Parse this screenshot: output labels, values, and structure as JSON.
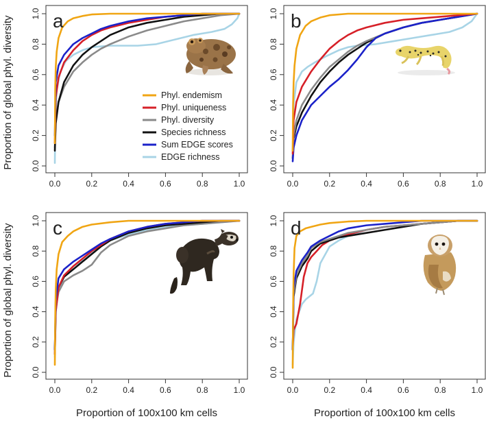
{
  "figure": {
    "ylabel": "Proportion of global phyl. diversity",
    "xlabel": "Proportion of 100x100 km cells"
  },
  "legend": {
    "entries": [
      {
        "label": "Phyl. endemism",
        "color": "#f0a513"
      },
      {
        "label": "Phyl. uniqueness",
        "color": "#d62028"
      },
      {
        "label": "Phyl. diversity",
        "color": "#8a8a8a"
      },
      {
        "label": "Species richness",
        "color": "#111111"
      },
      {
        "label": "Sum EDGE scores",
        "color": "#1b22c9"
      },
      {
        "label": "EDGE richness",
        "color": "#a8d4e6"
      }
    ]
  },
  "chart_data": [
    {
      "type": "line",
      "panel": "a",
      "letter": "a",
      "animal": "toad",
      "xlim": [
        0,
        1
      ],
      "ylim": [
        0,
        1
      ],
      "xticks": [
        "0.0",
        "0.2",
        "0.4",
        "0.6",
        "0.8",
        "1.0"
      ],
      "yticks": [
        "0.0",
        "0.2",
        "0.4",
        "0.6",
        "0.8",
        "1.0"
      ],
      "series": [
        {
          "name": "EDGE richness",
          "color": "#a8d4e6",
          "x": [
            0,
            0.002,
            0.01,
            0.03,
            0.06,
            0.1,
            0.15,
            0.2,
            0.25,
            0.3,
            0.38,
            0.45,
            0.55,
            0.65,
            0.75,
            0.85,
            0.92,
            0.96,
            0.99,
            1.0
          ],
          "y": [
            0.02,
            0.25,
            0.5,
            0.62,
            0.69,
            0.73,
            0.76,
            0.78,
            0.785,
            0.79,
            0.79,
            0.79,
            0.8,
            0.83,
            0.86,
            0.88,
            0.9,
            0.93,
            0.97,
            1.0
          ]
        },
        {
          "name": "Phyl. diversity",
          "color": "#8a8a8a",
          "x": [
            0,
            0.005,
            0.02,
            0.05,
            0.1,
            0.15,
            0.2,
            0.25,
            0.3,
            0.4,
            0.5,
            0.6,
            0.7,
            0.8,
            0.9,
            1.0
          ],
          "y": [
            0.12,
            0.3,
            0.42,
            0.52,
            0.62,
            0.68,
            0.73,
            0.77,
            0.8,
            0.85,
            0.89,
            0.92,
            0.95,
            0.97,
            0.99,
            1.0
          ]
        },
        {
          "name": "Species richness",
          "color": "#111111",
          "x": [
            0,
            0.005,
            0.02,
            0.05,
            0.1,
            0.15,
            0.2,
            0.25,
            0.3,
            0.4,
            0.5,
            0.6,
            0.7,
            0.8,
            0.9,
            1.0
          ],
          "y": [
            0.1,
            0.28,
            0.42,
            0.55,
            0.66,
            0.73,
            0.78,
            0.82,
            0.86,
            0.91,
            0.94,
            0.96,
            0.98,
            0.99,
            1.0,
            1.0
          ]
        },
        {
          "name": "Phyl. uniqueness",
          "color": "#d62028",
          "x": [
            0,
            0.005,
            0.02,
            0.05,
            0.1,
            0.15,
            0.2,
            0.25,
            0.3,
            0.4,
            0.5,
            0.6,
            0.7,
            0.8,
            0.9,
            1.0
          ],
          "y": [
            0.15,
            0.45,
            0.58,
            0.68,
            0.76,
            0.82,
            0.86,
            0.89,
            0.91,
            0.94,
            0.96,
            0.98,
            0.99,
            1.0,
            1.0,
            1.0
          ]
        },
        {
          "name": "Sum EDGE scores",
          "color": "#1b22c9",
          "x": [
            0,
            0.005,
            0.02,
            0.05,
            0.1,
            0.15,
            0.2,
            0.25,
            0.3,
            0.4,
            0.5,
            0.6,
            0.7,
            0.8,
            0.9,
            1.0
          ],
          "y": [
            0.2,
            0.55,
            0.66,
            0.73,
            0.8,
            0.84,
            0.87,
            0.9,
            0.92,
            0.95,
            0.97,
            0.98,
            0.99,
            1.0,
            1.0,
            1.0
          ]
        },
        {
          "name": "Phyl. endemism",
          "color": "#f0a513",
          "x": [
            0,
            0.002,
            0.005,
            0.01,
            0.02,
            0.04,
            0.07,
            0.1,
            0.15,
            0.2,
            0.3,
            0.4,
            0.5,
            0.7,
            1.0
          ],
          "y": [
            0.15,
            0.5,
            0.65,
            0.75,
            0.84,
            0.91,
            0.95,
            0.97,
            0.985,
            0.995,
            1.0,
            1.0,
            1.0,
            1.0,
            1.0
          ]
        }
      ]
    },
    {
      "type": "line",
      "panel": "b",
      "letter": "b",
      "animal": "gecko",
      "xlim": [
        0,
        1
      ],
      "ylim": [
        0,
        1
      ],
      "xticks": [
        "0.0",
        "0.2",
        "0.4",
        "0.6",
        "0.8",
        "1.0"
      ],
      "yticks": [
        "0.0",
        "0.2",
        "0.4",
        "0.6",
        "0.8",
        "1.0"
      ],
      "series": [
        {
          "name": "EDGE richness",
          "color": "#a8d4e6",
          "x": [
            0,
            0.005,
            0.02,
            0.05,
            0.08,
            0.12,
            0.18,
            0.25,
            0.3,
            0.35,
            0.45,
            0.55,
            0.65,
            0.75,
            0.85,
            0.92,
            0.97,
            1.0
          ],
          "y": [
            0.1,
            0.4,
            0.55,
            0.62,
            0.65,
            0.68,
            0.72,
            0.76,
            0.78,
            0.79,
            0.8,
            0.82,
            0.84,
            0.86,
            0.88,
            0.91,
            0.95,
            1.0
          ]
        },
        {
          "name": "Species richness",
          "color": "#111111",
          "x": [
            0,
            0.005,
            0.02,
            0.05,
            0.1,
            0.15,
            0.2,
            0.25,
            0.3,
            0.35,
            0.4,
            0.5,
            0.6,
            0.7,
            0.8,
            0.9,
            1.0
          ],
          "y": [
            0.05,
            0.18,
            0.26,
            0.35,
            0.46,
            0.55,
            0.62,
            0.68,
            0.73,
            0.77,
            0.81,
            0.87,
            0.91,
            0.94,
            0.96,
            0.98,
            1.0
          ]
        },
        {
          "name": "Phyl. diversity",
          "color": "#8a8a8a",
          "x": [
            0,
            0.005,
            0.02,
            0.05,
            0.1,
            0.15,
            0.2,
            0.25,
            0.3,
            0.35,
            0.4,
            0.5,
            0.6,
            0.7,
            0.8,
            0.9,
            1.0
          ],
          "y": [
            0.05,
            0.2,
            0.3,
            0.4,
            0.5,
            0.58,
            0.65,
            0.7,
            0.75,
            0.79,
            0.82,
            0.87,
            0.91,
            0.94,
            0.96,
            0.98,
            1.0
          ]
        },
        {
          "name": "Sum EDGE scores",
          "color": "#1b22c9",
          "x": [
            0,
            0.005,
            0.02,
            0.05,
            0.1,
            0.15,
            0.2,
            0.25,
            0.3,
            0.35,
            0.4,
            0.45,
            0.5,
            0.6,
            0.7,
            0.8,
            0.9,
            1.0
          ],
          "y": [
            0.03,
            0.12,
            0.2,
            0.3,
            0.4,
            0.46,
            0.52,
            0.57,
            0.63,
            0.7,
            0.78,
            0.84,
            0.87,
            0.91,
            0.94,
            0.96,
            0.98,
            1.0
          ]
        },
        {
          "name": "Phyl. uniqueness",
          "color": "#d62028",
          "x": [
            0,
            0.005,
            0.02,
            0.05,
            0.1,
            0.15,
            0.2,
            0.25,
            0.3,
            0.35,
            0.4,
            0.5,
            0.6,
            0.7,
            0.8,
            0.9,
            1.0
          ],
          "y": [
            0.08,
            0.3,
            0.42,
            0.52,
            0.62,
            0.7,
            0.77,
            0.82,
            0.86,
            0.89,
            0.91,
            0.94,
            0.96,
            0.97,
            0.98,
            0.99,
            1.0
          ]
        },
        {
          "name": "Phyl. endemism",
          "color": "#f0a513",
          "x": [
            0,
            0.002,
            0.005,
            0.01,
            0.02,
            0.04,
            0.07,
            0.1,
            0.15,
            0.2,
            0.3,
            0.4,
            0.5,
            0.7,
            1.0
          ],
          "y": [
            0.1,
            0.4,
            0.55,
            0.66,
            0.77,
            0.86,
            0.92,
            0.95,
            0.975,
            0.99,
            1.0,
            1.0,
            1.0,
            1.0,
            1.0
          ]
        }
      ]
    },
    {
      "type": "line",
      "panel": "c",
      "letter": "c",
      "animal": "ferret",
      "xlim": [
        0,
        1
      ],
      "ylim": [
        0,
        1
      ],
      "xticks": [
        "0.0",
        "0.2",
        "0.4",
        "0.6",
        "0.8",
        "1.0"
      ],
      "yticks": [
        "0.0",
        "0.2",
        "0.4",
        "0.6",
        "0.8",
        "1.0"
      ],
      "series": [
        {
          "name": "EDGE richness",
          "color": "#a8d4e6",
          "x": [
            0,
            0.005,
            0.02,
            0.05,
            0.1,
            0.15,
            0.2,
            0.25,
            0.3,
            0.4,
            0.5,
            0.6,
            0.7,
            0.8,
            0.9,
            1.0
          ],
          "y": [
            0.1,
            0.4,
            0.55,
            0.63,
            0.7,
            0.74,
            0.79,
            0.84,
            0.87,
            0.91,
            0.94,
            0.96,
            0.97,
            0.98,
            0.99,
            1.0
          ]
        },
        {
          "name": "Phyl. diversity",
          "color": "#8a8a8a",
          "x": [
            0,
            0.005,
            0.02,
            0.05,
            0.1,
            0.15,
            0.2,
            0.25,
            0.3,
            0.4,
            0.5,
            0.6,
            0.7,
            0.8,
            0.9,
            1.0
          ],
          "y": [
            0.12,
            0.42,
            0.53,
            0.6,
            0.64,
            0.67,
            0.71,
            0.79,
            0.84,
            0.9,
            0.93,
            0.95,
            0.97,
            0.98,
            0.99,
            1.0
          ]
        },
        {
          "name": "Species richness",
          "color": "#111111",
          "x": [
            0,
            0.005,
            0.02,
            0.05,
            0.1,
            0.15,
            0.2,
            0.25,
            0.3,
            0.4,
            0.5,
            0.6,
            0.7,
            0.8,
            0.9,
            1.0
          ],
          "y": [
            0.15,
            0.45,
            0.56,
            0.63,
            0.68,
            0.73,
            0.78,
            0.83,
            0.87,
            0.92,
            0.95,
            0.97,
            0.98,
            0.99,
            1.0,
            1.0
          ]
        },
        {
          "name": "Phyl. uniqueness",
          "color": "#d62028",
          "x": [
            0,
            0.005,
            0.02,
            0.05,
            0.1,
            0.15,
            0.2,
            0.25,
            0.3,
            0.4,
            0.5,
            0.6,
            0.7,
            0.8,
            0.9,
            1.0
          ],
          "y": [
            0.12,
            0.4,
            0.56,
            0.64,
            0.7,
            0.75,
            0.8,
            0.84,
            0.88,
            0.93,
            0.96,
            0.98,
            0.99,
            1.0,
            1.0,
            1.0
          ]
        },
        {
          "name": "Sum EDGE scores",
          "color": "#1b22c9",
          "x": [
            0,
            0.005,
            0.02,
            0.05,
            0.1,
            0.15,
            0.2,
            0.25,
            0.3,
            0.4,
            0.5,
            0.6,
            0.7,
            0.8,
            0.9,
            1.0
          ],
          "y": [
            0.15,
            0.48,
            0.62,
            0.68,
            0.73,
            0.77,
            0.81,
            0.85,
            0.88,
            0.93,
            0.96,
            0.98,
            0.99,
            1.0,
            1.0,
            1.0
          ]
        },
        {
          "name": "Phyl. endemism",
          "color": "#f0a513",
          "x": [
            0,
            0.002,
            0.005,
            0.01,
            0.02,
            0.04,
            0.07,
            0.1,
            0.15,
            0.2,
            0.3,
            0.4,
            0.5,
            0.7,
            1.0
          ],
          "y": [
            0.05,
            0.35,
            0.55,
            0.68,
            0.78,
            0.86,
            0.9,
            0.93,
            0.96,
            0.975,
            0.99,
            1.0,
            1.0,
            1.0,
            1.0
          ]
        }
      ]
    },
    {
      "type": "line",
      "panel": "d",
      "letter": "d",
      "animal": "owl",
      "xlim": [
        0,
        1
      ],
      "ylim": [
        0,
        1
      ],
      "xticks": [
        "0.0",
        "0.2",
        "0.4",
        "0.6",
        "0.8",
        "1.0"
      ],
      "yticks": [
        "0.0",
        "0.2",
        "0.4",
        "0.6",
        "0.8",
        "1.0"
      ],
      "series": [
        {
          "name": "EDGE richness",
          "color": "#a8d4e6",
          "x": [
            0,
            0.005,
            0.02,
            0.05,
            0.07,
            0.09,
            0.11,
            0.13,
            0.15,
            0.2,
            0.25,
            0.3,
            0.4,
            0.5,
            0.6,
            0.7,
            0.8,
            0.9,
            1.0
          ],
          "y": [
            0.05,
            0.2,
            0.35,
            0.45,
            0.48,
            0.5,
            0.52,
            0.6,
            0.72,
            0.83,
            0.87,
            0.9,
            0.94,
            0.96,
            0.97,
            0.98,
            0.99,
            1.0,
            1.0
          ]
        },
        {
          "name": "Phyl. uniqueness",
          "color": "#d62028",
          "x": [
            0,
            0.005,
            0.02,
            0.04,
            0.06,
            0.08,
            0.1,
            0.13,
            0.16,
            0.2,
            0.25,
            0.3,
            0.4,
            0.5,
            0.6,
            0.7,
            0.8,
            0.9,
            1.0
          ],
          "y": [
            0.15,
            0.28,
            0.32,
            0.45,
            0.63,
            0.72,
            0.76,
            0.8,
            0.84,
            0.87,
            0.89,
            0.91,
            0.94,
            0.96,
            0.97,
            0.98,
            0.99,
            1.0,
            1.0
          ]
        },
        {
          "name": "Species richness",
          "color": "#111111",
          "x": [
            0,
            0.005,
            0.02,
            0.05,
            0.08,
            0.1,
            0.15,
            0.2,
            0.25,
            0.3,
            0.4,
            0.5,
            0.6,
            0.7,
            0.8,
            0.9,
            1.0
          ],
          "y": [
            0.15,
            0.5,
            0.62,
            0.7,
            0.75,
            0.8,
            0.85,
            0.87,
            0.89,
            0.9,
            0.92,
            0.94,
            0.96,
            0.98,
            0.99,
            1.0,
            1.0
          ]
        },
        {
          "name": "Phyl. diversity",
          "color": "#8a8a8a",
          "x": [
            0,
            0.005,
            0.02,
            0.05,
            0.08,
            0.1,
            0.15,
            0.2,
            0.25,
            0.3,
            0.4,
            0.5,
            0.6,
            0.7,
            0.8,
            0.9,
            1.0
          ],
          "y": [
            0.15,
            0.52,
            0.64,
            0.72,
            0.77,
            0.82,
            0.86,
            0.88,
            0.9,
            0.92,
            0.94,
            0.96,
            0.97,
            0.98,
            0.99,
            1.0,
            1.0
          ]
        },
        {
          "name": "Sum EDGE scores",
          "color": "#1b22c9",
          "x": [
            0,
            0.005,
            0.02,
            0.05,
            0.08,
            0.1,
            0.15,
            0.2,
            0.25,
            0.3,
            0.4,
            0.5,
            0.6,
            0.7,
            0.8,
            0.9,
            1.0
          ],
          "y": [
            0.15,
            0.55,
            0.67,
            0.74,
            0.79,
            0.83,
            0.87,
            0.9,
            0.93,
            0.95,
            0.97,
            0.98,
            0.99,
            1.0,
            1.0,
            1.0,
            1.0
          ]
        },
        {
          "name": "Phyl. endemism",
          "color": "#f0a513",
          "x": [
            0,
            0.002,
            0.005,
            0.01,
            0.02,
            0.04,
            0.07,
            0.1,
            0.15,
            0.2,
            0.3,
            0.4,
            0.5,
            0.7,
            1.0
          ],
          "y": [
            0.03,
            0.4,
            0.65,
            0.82,
            0.9,
            0.93,
            0.95,
            0.96,
            0.975,
            0.985,
            0.995,
            1.0,
            1.0,
            1.0,
            1.0
          ]
        }
      ]
    }
  ]
}
